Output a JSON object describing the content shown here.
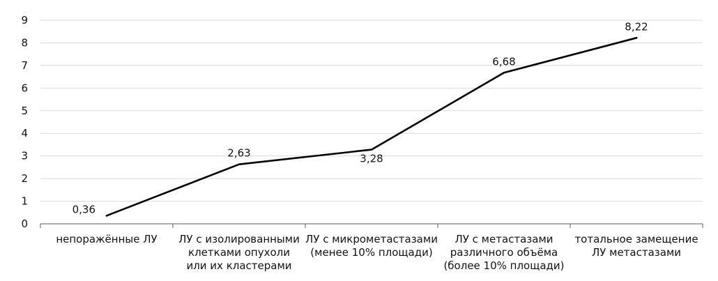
{
  "chart_data": {
    "type": "line",
    "title": "",
    "xlabel": "",
    "ylabel": "",
    "ylim": [
      0,
      9
    ],
    "y_ticks": [
      "0",
      "1",
      "2",
      "3",
      "4",
      "5",
      "6",
      "7",
      "8",
      "9"
    ],
    "grid": true,
    "legend": "none",
    "line_color": "#000000",
    "categories": [
      [
        "непоражённые ЛУ"
      ],
      [
        "ЛУ с изолированными",
        "клетками опухоли",
        "или их кластерами"
      ],
      [
        "ЛУ с микрометастазами",
        "(менее 10% площади)"
      ],
      [
        "ЛУ с метастазами",
        "различного объёма",
        "(более 10% площади)"
      ],
      [
        "тотальное замещение",
        "ЛУ метастазами"
      ]
    ],
    "series": [
      {
        "values": [
          0.36,
          2.63,
          3.28,
          6.68,
          8.22
        ],
        "labels": [
          "0,36",
          "2,63",
          "3,28",
          "6,68",
          "8,22"
        ]
      }
    ]
  }
}
